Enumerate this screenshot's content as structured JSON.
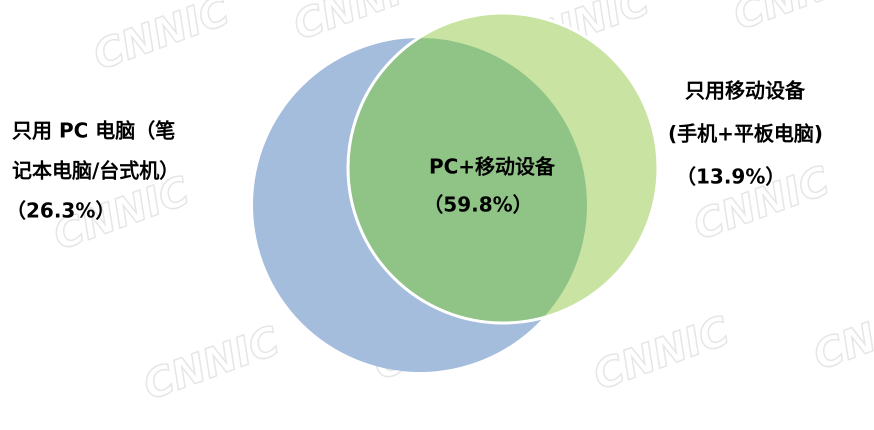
{
  "watermark": "CNNIC",
  "regions": [
    {
      "lines": [
        "只用 PC 电脑（笔",
        "记本电脑/台式机）",
        "（26.3%）"
      ]
    },
    {
      "lines": [
        "PC+移动设备",
        "（59.8%）"
      ]
    },
    {
      "lines": [
        "只用移动设备",
        "(手机+平板电脑)",
        "（13.9%）"
      ]
    }
  ]
}
